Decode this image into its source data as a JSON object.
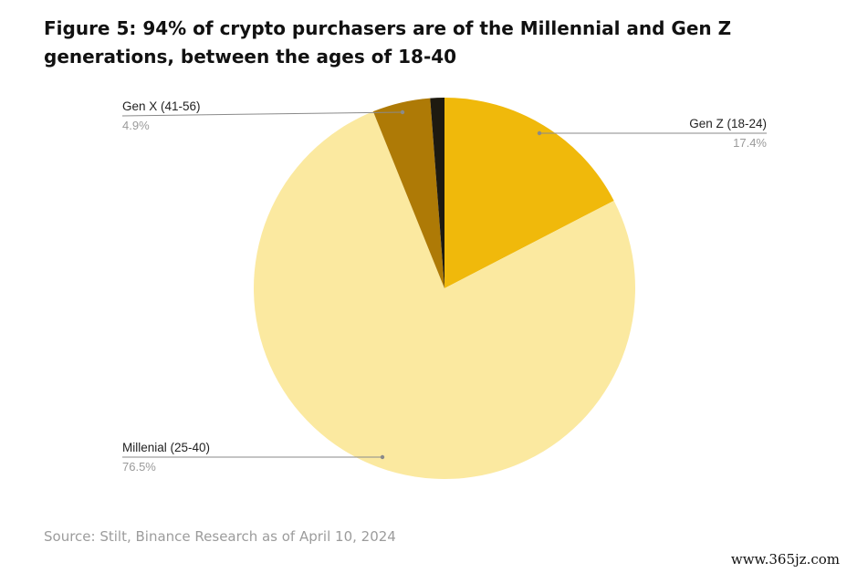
{
  "title": "Figure 5: 94% of crypto purchasers are of the Millennial and Gen Z generations, between the ages of 18-40",
  "source": "Source: Stilt, Binance Research as of April 10, 2024",
  "watermark": "www.365jz.com",
  "chart_data": {
    "type": "pie",
    "title": "Figure 5: 94% of crypto purchasers are of the Millennial and Gen Z generations, between the ages of 18-40",
    "slices": [
      {
        "label": "Gen Z (18-24)",
        "value": 17.4,
        "value_label": "17.4%",
        "color": "#F0B90B",
        "labeled": true
      },
      {
        "label": "Millenial (25-40)",
        "value": 76.5,
        "value_label": "76.5%",
        "color": "#FBE9A0",
        "labeled": true
      },
      {
        "label": "Gen X (41-56)",
        "value": 4.9,
        "value_label": "4.9%",
        "color": "#AE7A06",
        "labeled": true
      },
      {
        "label": "",
        "value": 1.2,
        "value_label": "",
        "color": "#1E1A10",
        "labeled": false
      }
    ],
    "start_angle_deg": 0,
    "direction": "clockwise",
    "legend": "none"
  }
}
